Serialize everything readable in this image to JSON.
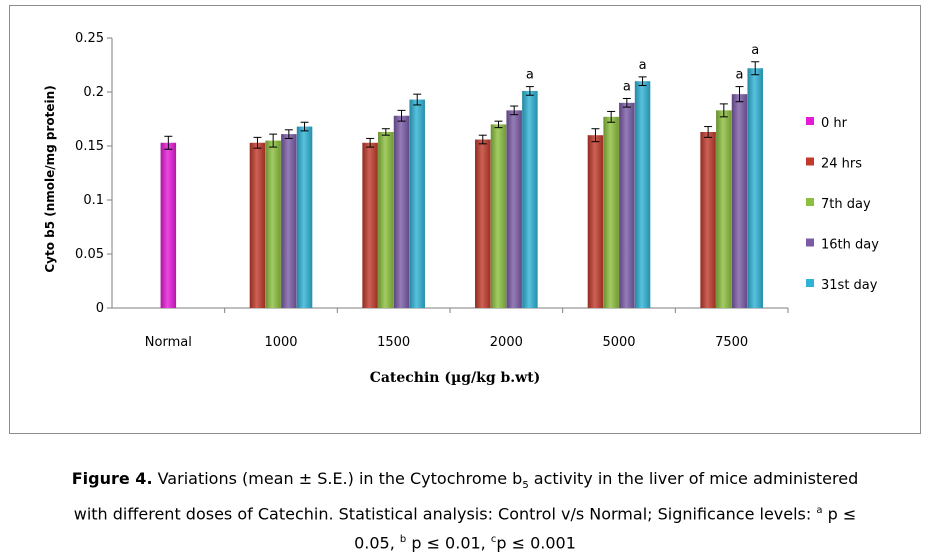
{
  "chart_data": {
    "type": "bar",
    "xlabel": "Catechin (µg/kg b.wt)",
    "ylabel": "Cyto b5 (nmole/mg protein)",
    "ylim": [
      0,
      0.25
    ],
    "yticks": [
      "0",
      "0.05",
      "0.1",
      "0.15",
      "0.2",
      "0.25"
    ],
    "categories": [
      "Normal",
      "1000",
      "1500",
      "2000",
      "5000",
      "7500"
    ],
    "legend_position": "right",
    "grid": false,
    "series": [
      {
        "name": "0 hr",
        "color": "#e51ad6",
        "values": [
          0.153,
          null,
          null,
          null,
          null,
          null
        ],
        "errors": [
          0.006,
          null,
          null,
          null,
          null,
          null
        ],
        "sig": [
          "",
          "",
          "",
          "",
          "",
          ""
        ]
      },
      {
        "name": "24 hrs",
        "color": "#c0392b",
        "values": [
          null,
          0.153,
          0.153,
          0.156,
          0.16,
          0.163
        ],
        "errors": [
          null,
          0.005,
          0.004,
          0.004,
          0.006,
          0.005
        ],
        "sig": [
          "",
          "",
          "",
          "",
          "",
          ""
        ]
      },
      {
        "name": "7th day",
        "color": "#8cbf3f",
        "values": [
          null,
          0.155,
          0.163,
          0.17,
          0.177,
          0.183
        ],
        "errors": [
          null,
          0.006,
          0.003,
          0.003,
          0.005,
          0.006
        ],
        "sig": [
          "",
          "",
          "",
          "",
          "",
          ""
        ]
      },
      {
        "name": "16th day",
        "color": "#7b5ba6",
        "values": [
          null,
          0.161,
          0.178,
          0.183,
          0.19,
          0.198
        ],
        "errors": [
          null,
          0.004,
          0.005,
          0.004,
          0.004,
          0.007
        ],
        "sig": [
          "",
          "",
          "",
          "",
          "a",
          "a"
        ]
      },
      {
        "name": "31st  day",
        "color": "#2eb3d6",
        "values": [
          null,
          0.168,
          0.193,
          0.201,
          0.21,
          0.222
        ],
        "errors": [
          null,
          0.004,
          0.005,
          0.004,
          0.004,
          0.006
        ],
        "sig": [
          "",
          "",
          "",
          "a",
          "a",
          "a"
        ]
      }
    ]
  },
  "caption": {
    "figure_label": "Figure 4.",
    "line1_text": " Variations (mean ± S.E.) in the Cytochrome b",
    "line1_sub": "5",
    "line1_rest": " activity in the liver of mice administered",
    "line2_text": "with different doses of Catechin.  Statistical analysis: Control v/s Normal; Significance levels: ",
    "sup_a": "a",
    "line2_tail": " p ≤",
    "line3_text": "0.05, ",
    "sup_b": "b",
    "line3_mid": " p ≤ 0.01, ",
    "sup_c": "c",
    "line3_end": "p  ≤ 0.001"
  }
}
